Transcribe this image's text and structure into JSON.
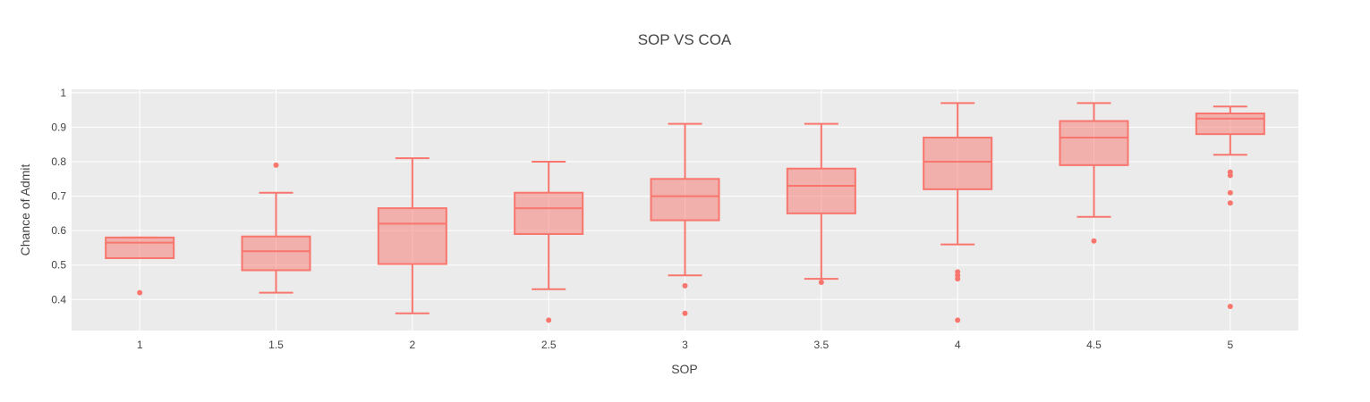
{
  "chart_data": {
    "type": "box",
    "title": "SOP VS COA",
    "xlabel": "SOP",
    "ylabel": "Chance of Admit",
    "x_ticks": [
      "1",
      "1.5",
      "2",
      "2.5",
      "3",
      "3.5",
      "4",
      "4.5",
      "5"
    ],
    "y_ticks": [
      "0.4",
      "0.5",
      "0.6",
      "0.7",
      "0.8",
      "0.9",
      "1"
    ],
    "ylim": [
      0.31,
      1.01
    ],
    "grid": true,
    "colors": {
      "box": "#f8766d",
      "plot_bg": "#ebebeb",
      "grid": "#ffffff"
    },
    "boxes": [
      {
        "x": 1,
        "min": 0.52,
        "q1": 0.52,
        "median": 0.565,
        "q3": 0.58,
        "max": 0.58,
        "outliers": [
          0.42
        ]
      },
      {
        "x": 1.5,
        "min": 0.42,
        "q1": 0.485,
        "median": 0.54,
        "q3": 0.583,
        "max": 0.71,
        "outliers": [
          0.79
        ]
      },
      {
        "x": 2,
        "min": 0.36,
        "q1": 0.503,
        "median": 0.62,
        "q3": 0.665,
        "max": 0.81,
        "outliers": []
      },
      {
        "x": 2.5,
        "min": 0.43,
        "q1": 0.59,
        "median": 0.665,
        "q3": 0.71,
        "max": 0.8,
        "outliers": [
          0.34
        ]
      },
      {
        "x": 3,
        "min": 0.47,
        "q1": 0.63,
        "median": 0.7,
        "q3": 0.75,
        "max": 0.91,
        "outliers": [
          0.44,
          0.36
        ]
      },
      {
        "x": 3.5,
        "min": 0.46,
        "q1": 0.65,
        "median": 0.73,
        "q3": 0.78,
        "max": 0.91,
        "outliers": [
          0.45
        ]
      },
      {
        "x": 4,
        "min": 0.56,
        "q1": 0.72,
        "median": 0.8,
        "q3": 0.87,
        "max": 0.97,
        "outliers": [
          0.48,
          0.47,
          0.46,
          0.34
        ]
      },
      {
        "x": 4.5,
        "min": 0.64,
        "q1": 0.79,
        "median": 0.87,
        "q3": 0.918,
        "max": 0.97,
        "outliers": [
          0.57
        ]
      },
      {
        "x": 5,
        "min": 0.82,
        "q1": 0.88,
        "median": 0.925,
        "q3": 0.94,
        "max": 0.96,
        "outliers": [
          0.77,
          0.76,
          0.71,
          0.68,
          0.38
        ]
      }
    ]
  }
}
